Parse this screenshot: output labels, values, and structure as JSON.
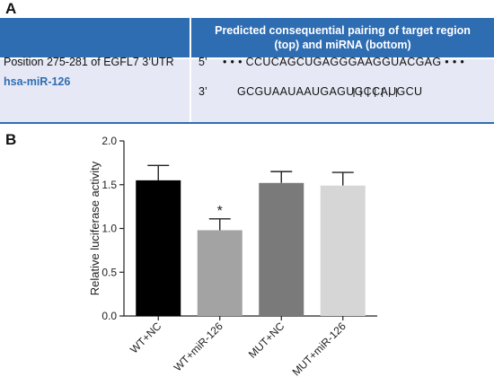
{
  "panel_a": {
    "label": "A",
    "header": "Predicted consequential pairing of target region (top) and miRNA (bottom)",
    "position_text": "Position 275-281 of EGFL7 3’UTR",
    "mirna_name": "hsa-miR-126",
    "prime5": "5’",
    "prime3": "3’",
    "target_sequence": "• • • CCUCAGCUGAGGGAAGGUACGAG • • •",
    "mirna_sequence": "GCGUAAUAAUGAGUGCCAUGCU",
    "pairing_count": 7,
    "colors": {
      "header_bg": "#2f6db3",
      "row_bg": "#e6e9f5",
      "mirna_text": "#2f6db3"
    }
  },
  "panel_b": {
    "label": "B",
    "significance_marker": "*"
  },
  "chart_data": {
    "type": "bar",
    "categories": [
      "WT+NC",
      "WT+miR-126",
      "MUT+NC",
      "MUT+miR-126"
    ],
    "values": [
      1.55,
      0.98,
      1.52,
      1.49
    ],
    "errors": [
      0.17,
      0.13,
      0.13,
      0.15
    ],
    "colors": [
      "#000000",
      "#a3a3a3",
      "#7a7a7a",
      "#d6d6d6"
    ],
    "ylabel": "Relative luciferase activity",
    "ylim": [
      0,
      2.0
    ],
    "yticks": [
      "0.0",
      "0.5",
      "1.0",
      "1.5",
      "2.0"
    ],
    "significant_index": 1,
    "grid": false
  }
}
